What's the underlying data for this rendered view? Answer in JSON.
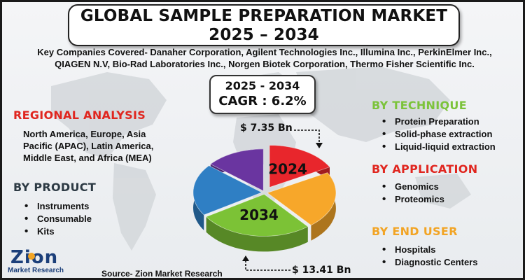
{
  "title": {
    "line1": "GLOBAL SAMPLE PREPARATION MARKET",
    "line2": "2025 – 2034"
  },
  "companies": {
    "line1": "Key Companies Covered- Danaher Corporation, Agilent Technologies Inc., Illumina Inc., PerkinElmer Inc.,",
    "line2": "QIAGEN N.V, Bio-Rad Laboratories Inc., Norgen Biotek Corporation, Thermo Fisher Scientific Inc."
  },
  "cagr": {
    "period": "2025 - 2034",
    "value": "CAGR : 6.2%"
  },
  "regional": {
    "heading": "REGIONAL ANALYSIS",
    "text_lines": [
      "North America, Europe, Asia",
      "Pacific (APAC), Latin America,",
      "Middle East, and Africa (MEA)"
    ]
  },
  "product": {
    "heading": "BY PRODUCT",
    "items": [
      "Instruments",
      "Consumable",
      "Kits"
    ]
  },
  "technique": {
    "heading": "BY TECHNIQUE",
    "items": [
      "Protein Preparation",
      "Solid-phase extraction",
      "Liquid-liquid extraction"
    ]
  },
  "application": {
    "heading": "BY APPLICATION",
    "items": [
      "Genomics",
      "Proteomics"
    ]
  },
  "end_user": {
    "heading": "BY END USER",
    "items": [
      "Hospitals",
      "Diagnostic Centers"
    ]
  },
  "source": "Source- Zion Market Research",
  "logo": {
    "main": "Zion",
    "sub": "Market Research"
  },
  "colors": {
    "title_red": "#e0261f",
    "heading_green": "#7cc33b",
    "heading_gold": "#f2a424",
    "heading_dark": "#2d3a44"
  },
  "chart_data": {
    "type": "pie",
    "values_usd_bn": [
      {
        "year": "2024",
        "label": "$ 7.35 Bn",
        "value": 7.35
      },
      {
        "year": "2034",
        "label": "$ 13.41 Bn",
        "value": 13.41
      }
    ],
    "slices": [
      {
        "color": "#e8262c",
        "share": 0.17,
        "label": "2024"
      },
      {
        "color": "#f7a72a",
        "share": 0.22,
        "label": ""
      },
      {
        "color": "#7cc236",
        "share": 0.27,
        "label": "2034"
      },
      {
        "color": "#2f7fc4",
        "share": 0.2,
        "label": ""
      },
      {
        "color": "#6a35a0",
        "share": 0.14,
        "label": ""
      }
    ]
  }
}
